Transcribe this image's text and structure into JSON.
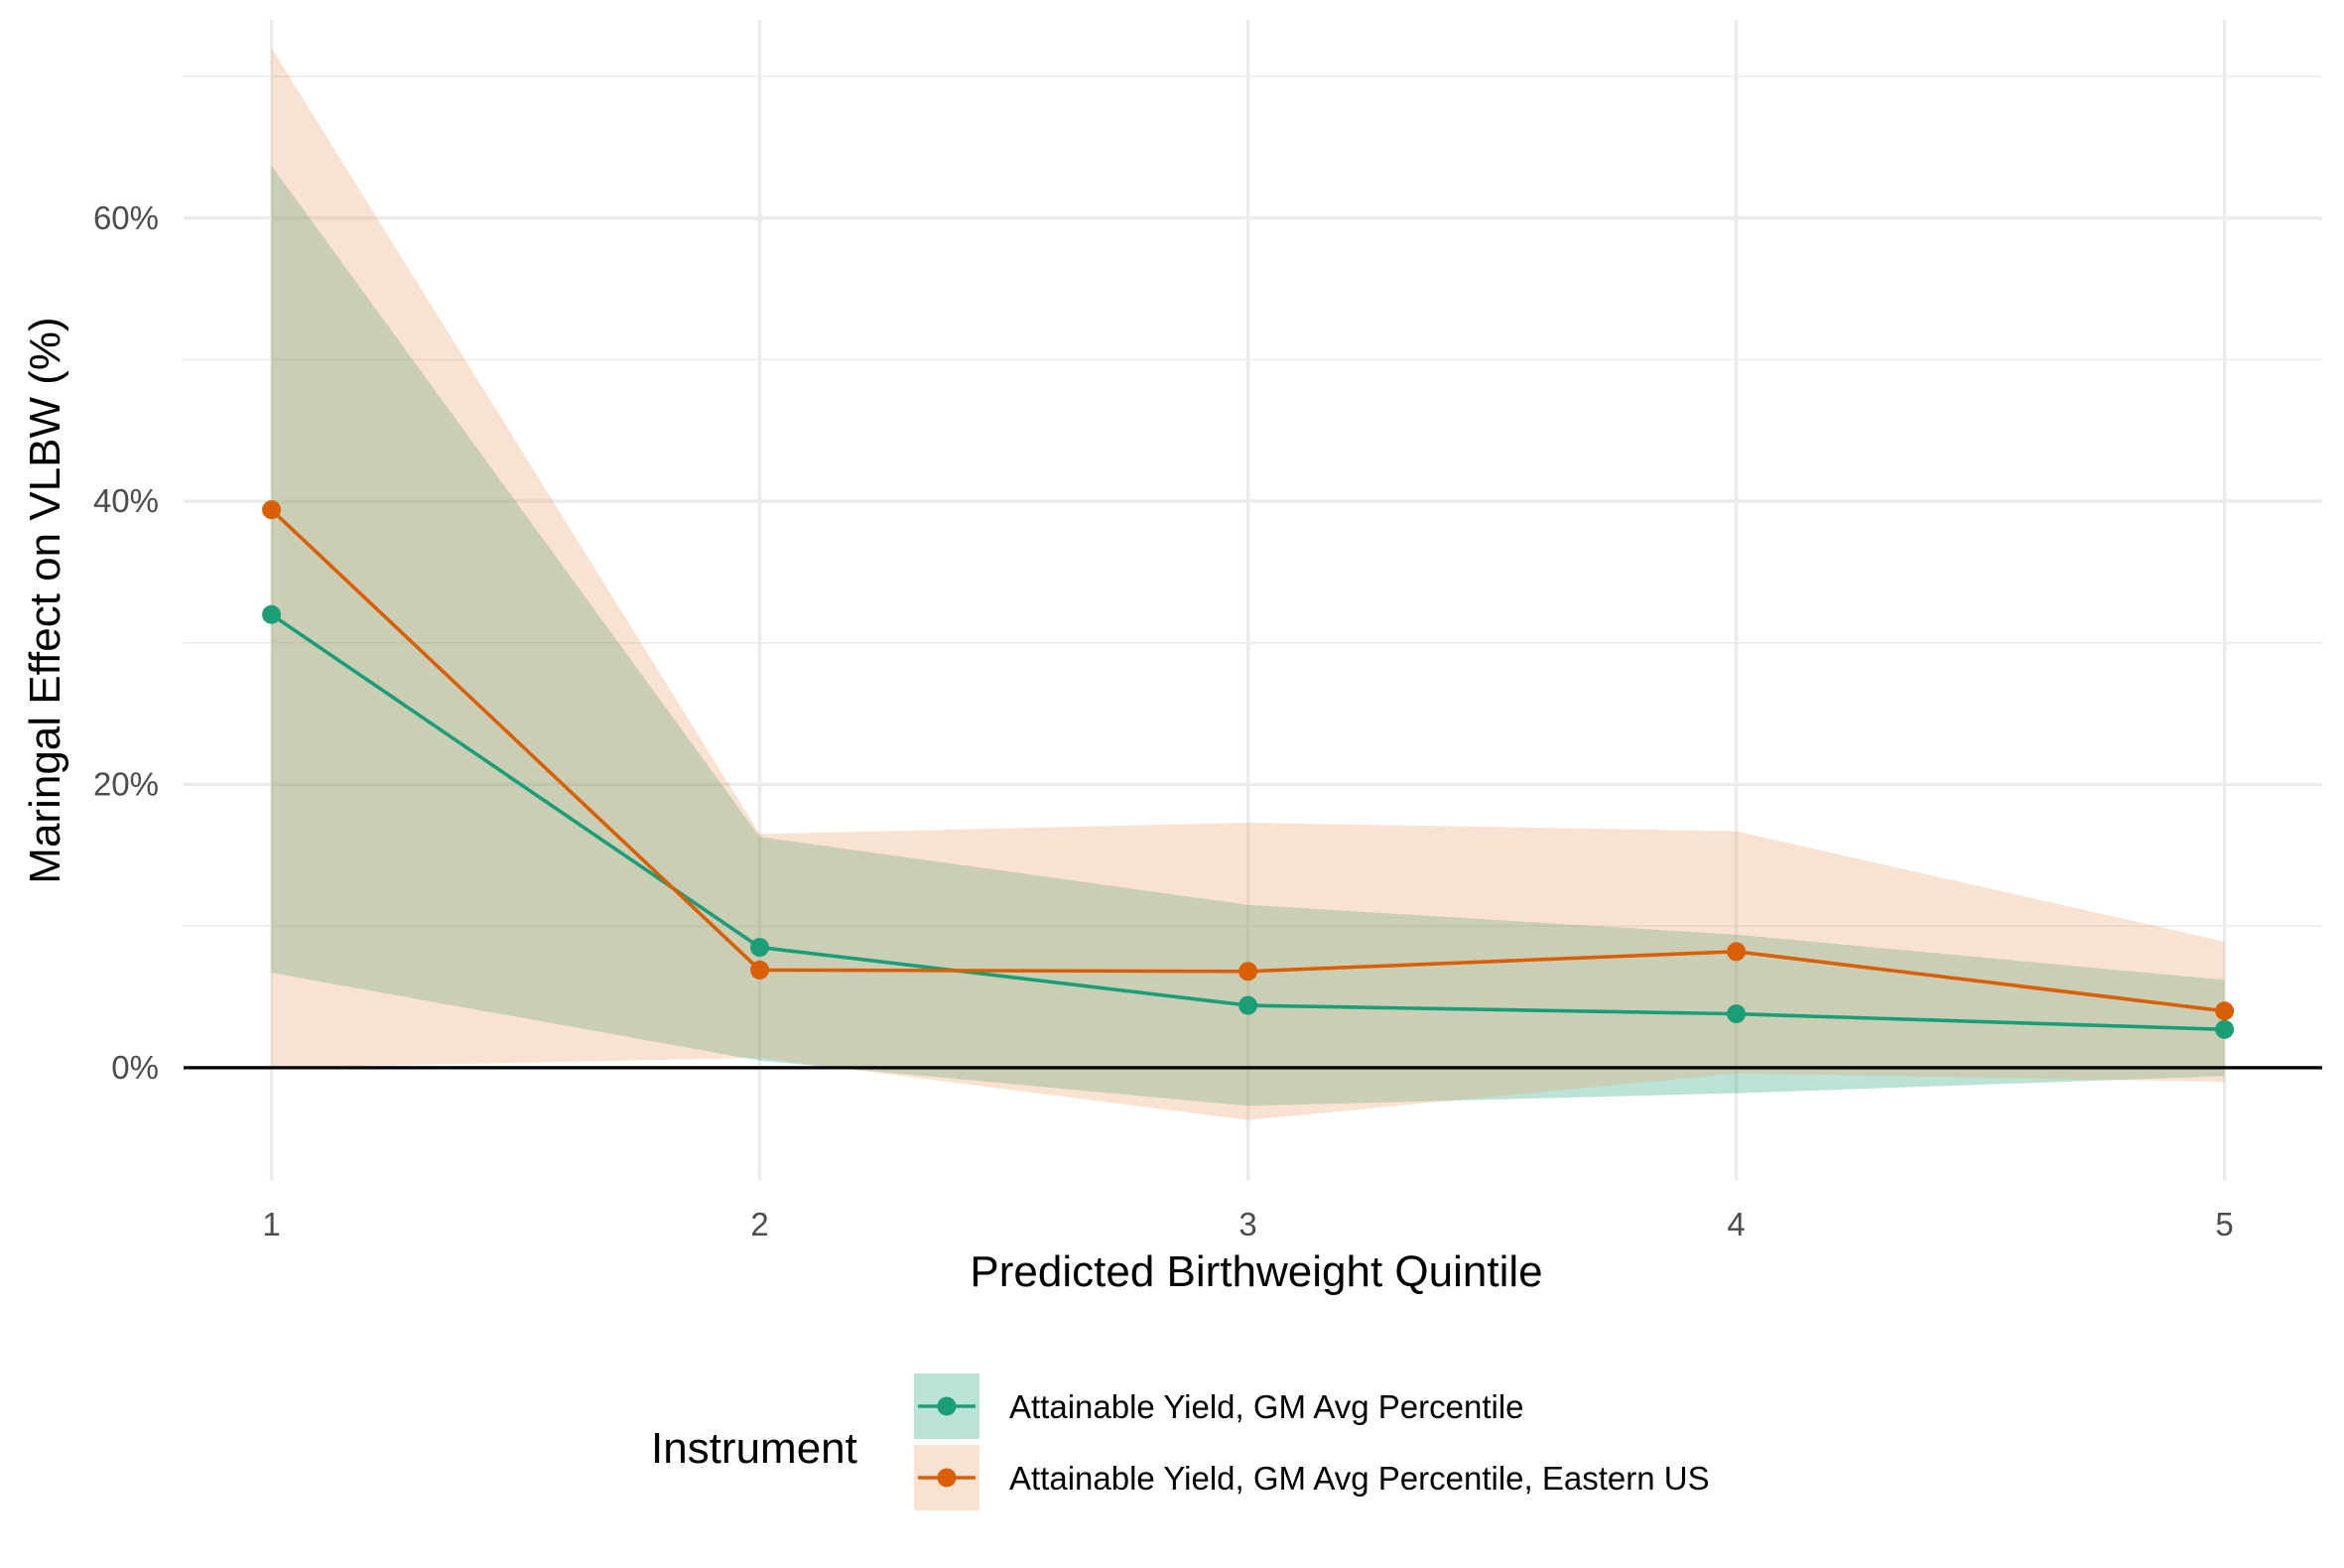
{
  "chart_data": {
    "type": "line",
    "xlabel": "Predicted Birthweight Quintile",
    "ylabel": "Maringal Effect on VLBW (%)",
    "x": [
      1,
      2,
      3,
      4,
      5
    ],
    "xlim": [
      0.82,
      5.2
    ],
    "ylim": [
      -0.08,
      0.74
    ],
    "x_ticks": [
      "1",
      "2",
      "3",
      "4",
      "5"
    ],
    "y_ticks": [
      {
        "value": 0,
        "label": "0%"
      },
      {
        "value": 0.2,
        "label": "20%"
      },
      {
        "value": 0.4,
        "label": "40%"
      },
      {
        "value": 0.6,
        "label": "60%"
      }
    ],
    "grid": true,
    "reference_line_y": 0,
    "legend": {
      "title": "Instrument",
      "position": "bottom"
    },
    "series": [
      {
        "name": "Attainable Yield, GM Avg Percentile",
        "color": "#1b9e77",
        "ribbon_color": "#1b9e77",
        "values": [
          0.32,
          0.085,
          0.044,
          0.038,
          0.027
        ],
        "lower": [
          0.067,
          0.005,
          -0.027,
          -0.018,
          -0.006
        ],
        "upper": [
          0.637,
          0.163,
          0.115,
          0.094,
          0.062
        ]
      },
      {
        "name": "Attainable Yield, GM Avg Percentile, Eastern US",
        "color": "#d95f02",
        "ribbon_color": "#f0a06a",
        "values": [
          0.394,
          0.069,
          0.068,
          0.082,
          0.04
        ],
        "lower": [
          0.0,
          0.007,
          -0.037,
          -0.004,
          -0.01
        ],
        "upper": [
          0.72,
          0.165,
          0.173,
          0.167,
          0.089
        ]
      }
    ]
  }
}
